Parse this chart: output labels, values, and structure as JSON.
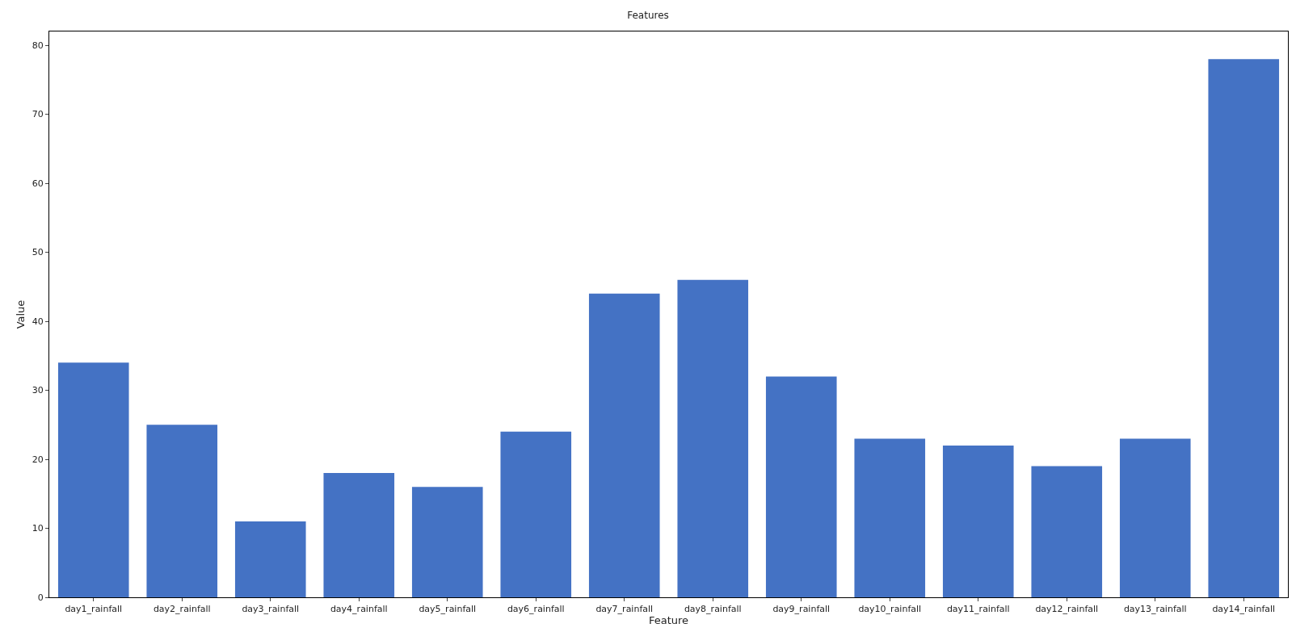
{
  "chart_data": {
    "type": "bar",
    "title": "Features",
    "xlabel": "Feature",
    "ylabel": "Value",
    "categories": [
      "day1_rainfall",
      "day2_rainfall",
      "day3_rainfall",
      "day4_rainfall",
      "day5_rainfall",
      "day6_rainfall",
      "day7_rainfall",
      "day8_rainfall",
      "day9_rainfall",
      "day10_rainfall",
      "day11_rainfall",
      "day12_rainfall",
      "day13_rainfall",
      "day14_rainfall"
    ],
    "values": [
      34,
      25,
      11,
      18,
      16,
      24,
      44,
      46,
      32,
      23,
      22,
      19,
      23,
      78
    ],
    "color": "#4472c4",
    "ylim": [
      0,
      82
    ],
    "yticks": [
      0,
      10,
      20,
      30,
      40,
      50,
      60,
      70,
      80
    ],
    "legend": false
  }
}
